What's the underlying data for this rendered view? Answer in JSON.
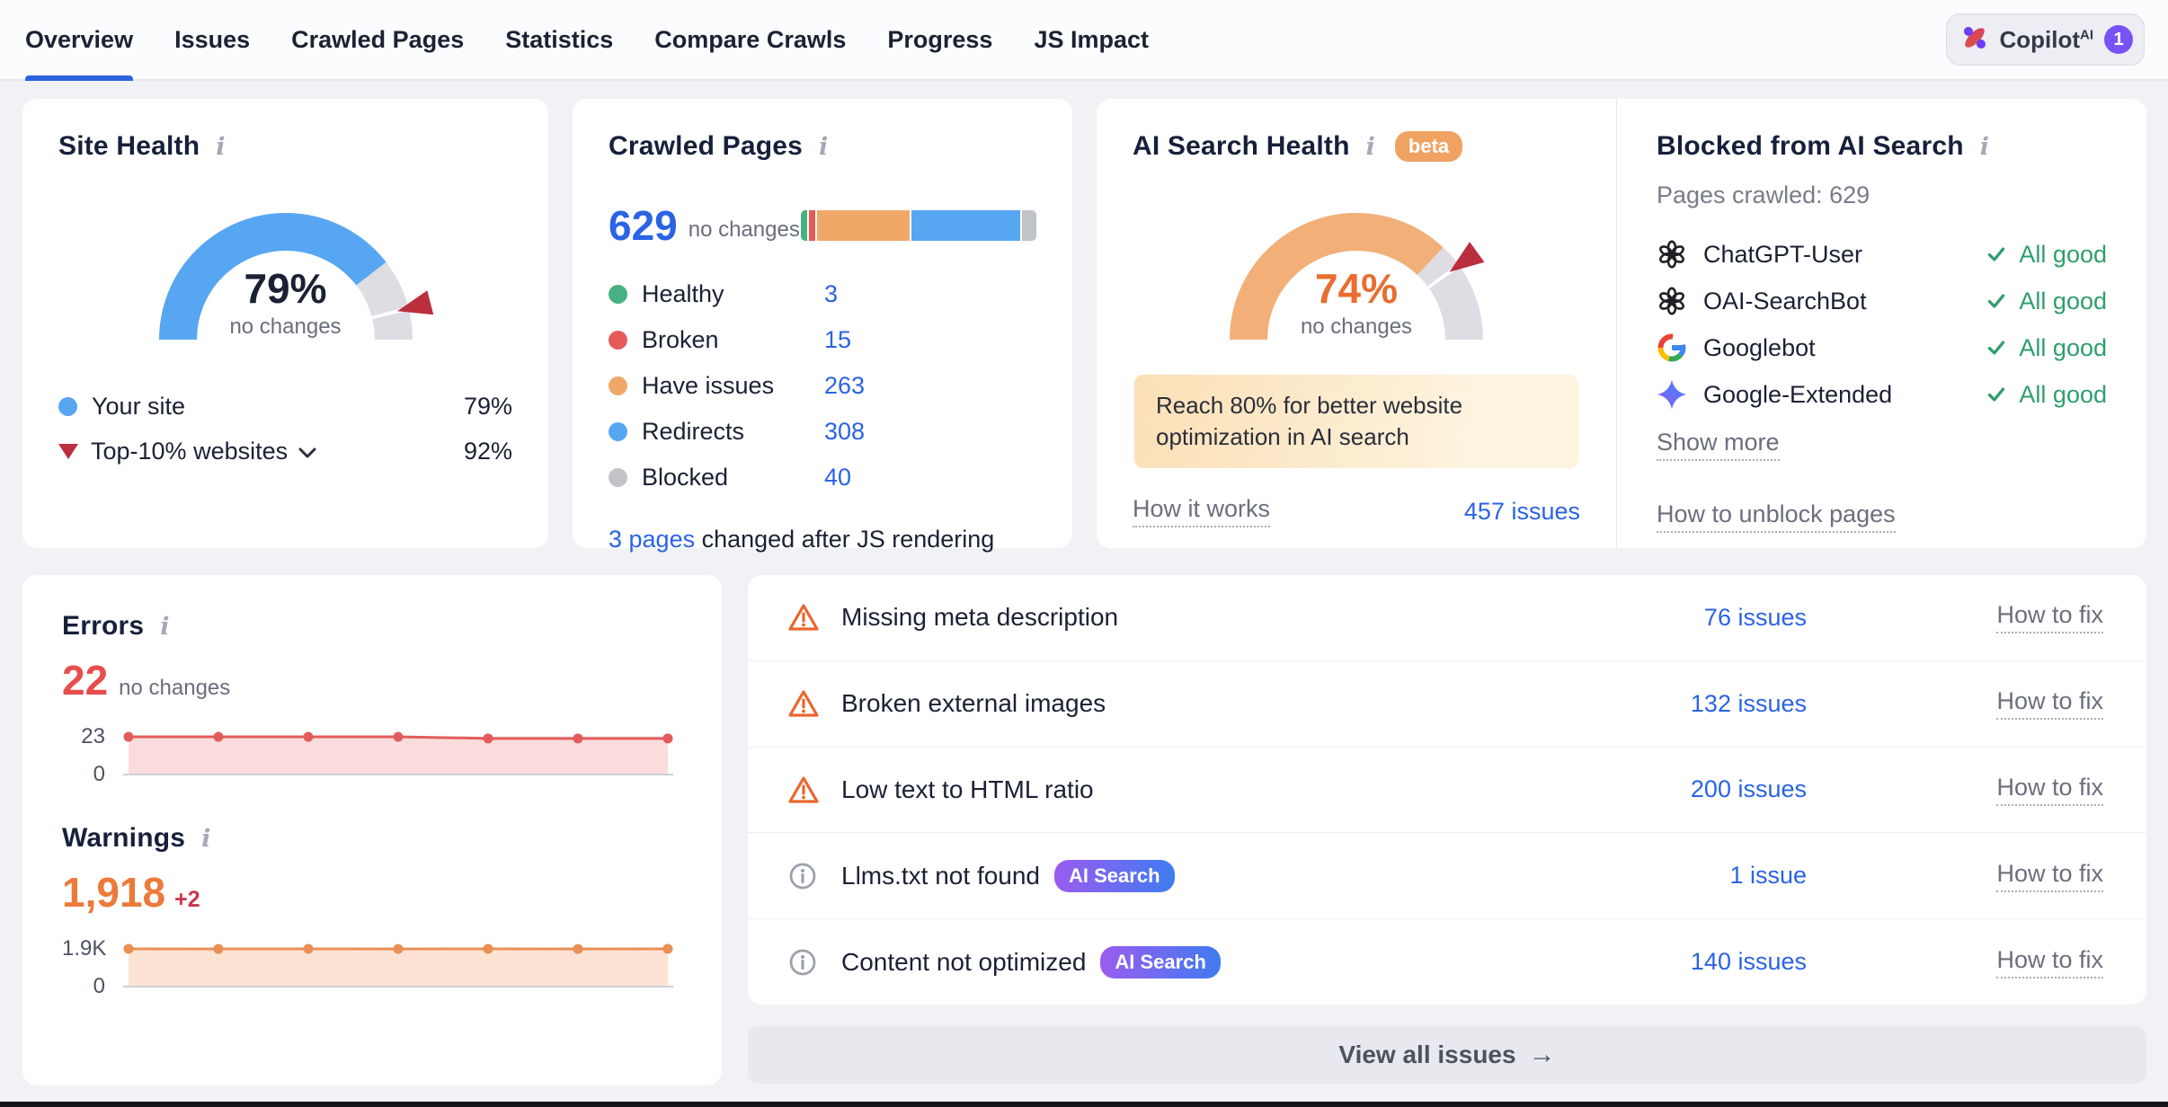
{
  "nav": {
    "tabs": [
      {
        "label": "Overview",
        "active": true
      },
      {
        "label": "Issues"
      },
      {
        "label": "Crawled Pages"
      },
      {
        "label": "Statistics"
      },
      {
        "label": "Compare Crawls"
      },
      {
        "label": "Progress"
      },
      {
        "label": "JS Impact"
      }
    ],
    "copilot": {
      "label": "Copilot",
      "sup": "AI",
      "badge": "1"
    }
  },
  "site_health": {
    "title": "Site Health",
    "value": "79%",
    "change": "no changes",
    "legend": [
      {
        "label": "Your site",
        "value": "79%"
      },
      {
        "label": "Top-10% websites",
        "value": "92%"
      }
    ]
  },
  "crawled_pages": {
    "title": "Crawled Pages",
    "total": "629",
    "change": "no changes",
    "segments": [
      {
        "label": "Healthy",
        "value": "3",
        "color": "#47b181"
      },
      {
        "label": "Broken",
        "value": "15",
        "color": "#e65a5a"
      },
      {
        "label": "Have issues",
        "value": "263",
        "color": "#f0a868"
      },
      {
        "label": "Redirects",
        "value": "308",
        "color": "#57a6f2"
      },
      {
        "label": "Blocked",
        "value": "40",
        "color": "#c2c3c9"
      }
    ],
    "js_note_link": "3 pages",
    "js_note_rest": " changed after JS rendering"
  },
  "ai_search_health": {
    "title": "AI Search Health",
    "beta": "beta",
    "value": "74%",
    "change": "no changes",
    "banner": "Reach 80% for better website optimization in AI search",
    "how_it_works": "How it works",
    "issues_link": "457 issues"
  },
  "blocked_ai": {
    "title": "Blocked from AI Search",
    "pages_crawled": "Pages crawled: 629",
    "bots": [
      {
        "name": "ChatGPT-User",
        "status": "All good"
      },
      {
        "name": "OAI-SearchBot",
        "status": "All good"
      },
      {
        "name": "Googlebot",
        "status": "All good"
      },
      {
        "name": "Google-Extended",
        "status": "All good"
      }
    ],
    "show_more": "Show more",
    "unblock": "How to unblock pages"
  },
  "errors": {
    "title": "Errors",
    "value": "22",
    "change": "no changes",
    "y_top": "23",
    "y_bottom": "0"
  },
  "warnings": {
    "title": "Warnings",
    "value": "1,918",
    "delta": "+2",
    "y_top": "1.9K",
    "y_bottom": "0"
  },
  "issues": {
    "rows": [
      {
        "label": "Missing meta description",
        "count": "76 issues",
        "fix": "How to fix"
      },
      {
        "label": "Broken external images",
        "count": "132 issues",
        "fix": "How to fix"
      },
      {
        "label": "Low text to HTML ratio",
        "count": "200 issues",
        "fix": "How to fix"
      },
      {
        "label": "Llms.txt not found",
        "badge": "AI Search",
        "count": "1 issue",
        "fix": "How to fix"
      },
      {
        "label": "Content not optimized",
        "badge": "AI Search",
        "count": "140 issues",
        "fix": "How to fix"
      }
    ],
    "view_all": "View all issues"
  },
  "colors": {
    "accent_blue": "#2a63e4",
    "gauge_blue": "#57a6f2",
    "gauge_orange": "#f2b078",
    "gauge_track": "#dddde3",
    "benchmark_red": "#bb2e3e",
    "error_red": "#e84c4c",
    "warning_orange": "#ed7a3a",
    "good_green": "#2f9e6d"
  },
  "chart_data": [
    {
      "type": "gauge",
      "title": "Site Health",
      "value_pct": 79,
      "benchmark_pct": 92,
      "color": "#57a6f2",
      "note": "no changes",
      "series": [
        {
          "name": "Your site",
          "value": 79
        },
        {
          "name": "Top-10% websites",
          "value": 92
        }
      ]
    },
    {
      "type": "bar",
      "title": "Crawled Pages",
      "total": 629,
      "categories": [
        "Healthy",
        "Broken",
        "Have issues",
        "Redirects",
        "Blocked"
      ],
      "values": [
        3,
        15,
        263,
        308,
        40
      ],
      "colors": [
        "#47b181",
        "#e65a5a",
        "#f0a868",
        "#57a6f2",
        "#c2c3c9"
      ]
    },
    {
      "type": "gauge",
      "title": "AI Search Health",
      "value_pct": 74,
      "benchmark_pct": 80,
      "color": "#f2b078",
      "note": "no changes"
    },
    {
      "type": "area",
      "title": "Errors",
      "x": [
        1,
        2,
        3,
        4,
        5,
        6,
        7
      ],
      "values": [
        23,
        23,
        23,
        23,
        22,
        22,
        22
      ],
      "ylim": [
        0,
        23
      ],
      "yticks": [
        "23",
        "0"
      ],
      "line_color": "#e25c5c",
      "fill_color": "#fadcdc"
    },
    {
      "type": "area",
      "title": "Warnings",
      "x": [
        1,
        2,
        3,
        4,
        5,
        6,
        7
      ],
      "values": [
        1916,
        1915,
        1917,
        1915,
        1917,
        1915,
        1918
      ],
      "ylim": [
        0,
        1918
      ],
      "yticks": [
        "1.9K",
        "0"
      ],
      "line_color": "#ea8f55",
      "fill_color": "#fce3d3"
    }
  ]
}
